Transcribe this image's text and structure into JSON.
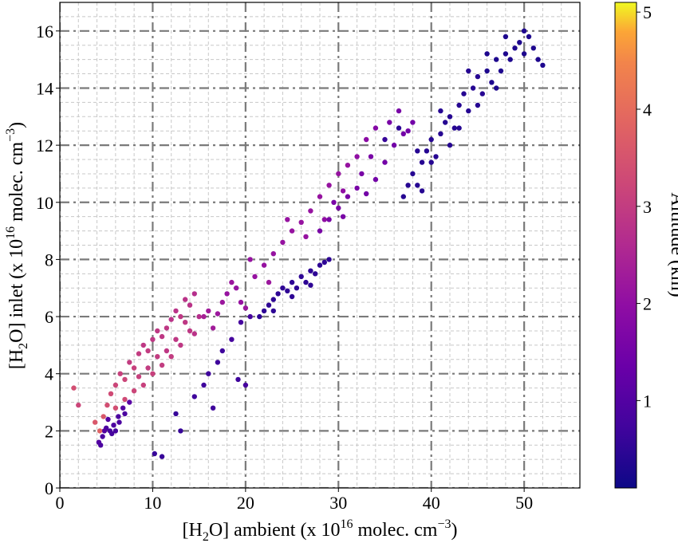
{
  "chart_data": {
    "type": "scatter",
    "title": "",
    "xlabel": {
      "prefix": "[H",
      "sub": "2",
      "mid": "O] ambient (x 10",
      "sup": "16",
      "suffix": " molec. cm",
      "sup2": "−3",
      "end": ")"
    },
    "ylabel": {
      "prefix": "[H",
      "sub": "2",
      "mid": "O] inlet (x 10",
      "sup": "16",
      "suffix": " molec. cm",
      "sup2": "−3",
      "end": ")"
    },
    "xlim": [
      0,
      56
    ],
    "ylim": [
      0,
      17
    ],
    "xticks": [
      0,
      10,
      20,
      30,
      40,
      50
    ],
    "yticks": [
      0,
      2,
      4,
      6,
      8,
      10,
      12,
      14,
      16
    ],
    "grid": {
      "major": true,
      "minor": true,
      "major_style": "dash-dot",
      "minor_style": "dashed"
    },
    "colorbar": {
      "label": "Altitude (km)",
      "colormap": "plasma",
      "range": [
        0.1,
        5.1
      ],
      "ticks": [
        1,
        2,
        3,
        4,
        5
      ]
    },
    "series": [
      {
        "points": [
          [
            4.2,
            1.6,
            1.0
          ],
          [
            4.6,
            1.8,
            0.9
          ],
          [
            5.0,
            2.1,
            0.9
          ],
          [
            5.4,
            2.0,
            0.8
          ],
          [
            5.8,
            2.2,
            0.9
          ],
          [
            6.3,
            2.5,
            0.9
          ],
          [
            5.2,
            2.4,
            1.0
          ],
          [
            4.8,
            2.0,
            1.0
          ],
          [
            6.0,
            2.0,
            0.8
          ],
          [
            6.8,
            2.8,
            1.0
          ],
          [
            7.5,
            3.0,
            1.1
          ],
          [
            7.0,
            2.6,
            0.9
          ],
          [
            5.6,
            1.9,
            0.8
          ],
          [
            6.4,
            2.3,
            0.9
          ],
          [
            4.4,
            1.5,
            0.9
          ]
        ]
      },
      {
        "points": [
          [
            1.5,
            3.5,
            3.4
          ],
          [
            2.0,
            2.9,
            3.2
          ],
          [
            3.8,
            2.3,
            3.6
          ],
          [
            4.3,
            2.0,
            3.8
          ],
          [
            4.7,
            2.5,
            3.6
          ],
          [
            5.1,
            2.9,
            3.4
          ],
          [
            5.5,
            3.3,
            3.3
          ],
          [
            6.0,
            3.6,
            3.2
          ],
          [
            6.5,
            4.0,
            3.1
          ],
          [
            7.0,
            3.8,
            3.2
          ],
          [
            7.5,
            4.4,
            3.0
          ],
          [
            8.0,
            4.2,
            3.1
          ],
          [
            8.5,
            4.7,
            3.0
          ],
          [
            9.0,
            5.0,
            2.9
          ],
          [
            9.5,
            4.8,
            3.0
          ],
          [
            10.0,
            5.2,
            2.9
          ],
          [
            10.5,
            5.5,
            2.9
          ],
          [
            11.0,
            5.3,
            2.9
          ],
          [
            11.5,
            5.6,
            2.9
          ],
          [
            12.0,
            5.9,
            2.8
          ],
          [
            12.5,
            6.2,
            2.8
          ],
          [
            13.0,
            6.0,
            2.9
          ],
          [
            13.5,
            5.8,
            2.9
          ],
          [
            14.0,
            6.4,
            2.8
          ],
          [
            14.5,
            6.8,
            2.7
          ],
          [
            14.0,
            5.5,
            2.9
          ],
          [
            15.0,
            6.0,
            2.7
          ],
          [
            13.0,
            5.0,
            2.9
          ],
          [
            12.0,
            4.6,
            3.0
          ],
          [
            11.0,
            4.3,
            3.0
          ],
          [
            10.0,
            4.0,
            3.1
          ],
          [
            9.0,
            3.6,
            3.1
          ],
          [
            8.0,
            3.4,
            3.2
          ],
          [
            7.0,
            3.1,
            3.3
          ],
          [
            6.0,
            2.8,
            3.4
          ],
          [
            11.5,
            4.8,
            2.9
          ],
          [
            12.5,
            5.2,
            2.9
          ],
          [
            13.5,
            6.6,
            2.8
          ],
          [
            14.5,
            5.4,
            2.8
          ],
          [
            10.5,
            4.6,
            3.0
          ],
          [
            9.5,
            4.2,
            3.0
          ],
          [
            8.5,
            3.9,
            3.1
          ]
        ]
      },
      {
        "points": [
          [
            15.5,
            6.0,
            2.4
          ],
          [
            16.0,
            6.2,
            2.3
          ],
          [
            16.5,
            5.6,
            2.3
          ],
          [
            17.0,
            6.1,
            2.2
          ],
          [
            17.5,
            6.5,
            2.2
          ],
          [
            18.0,
            6.8,
            2.1
          ],
          [
            19.0,
            7.0,
            2.1
          ],
          [
            20.0,
            6.3,
            2.2
          ],
          [
            21.0,
            7.4,
            2.1
          ],
          [
            22.0,
            7.8,
            2.1
          ],
          [
            23.0,
            8.2,
            2.1
          ],
          [
            24.0,
            8.6,
            2.1
          ],
          [
            25.0,
            9.0,
            2.1
          ],
          [
            26.0,
            9.3,
            2.1
          ],
          [
            27.0,
            9.7,
            2.1
          ],
          [
            28.0,
            10.2,
            2.1
          ],
          [
            29.0,
            10.6,
            2.1
          ],
          [
            30.0,
            11.0,
            2.1
          ],
          [
            31.0,
            11.3,
            2.1
          ],
          [
            32.0,
            11.6,
            2.0
          ],
          [
            18.5,
            7.2,
            2.2
          ],
          [
            22.5,
            7.2,
            2.2
          ],
          [
            26.5,
            8.8,
            2.1
          ],
          [
            24.5,
            9.4,
            2.1
          ],
          [
            28.5,
            9.4,
            2.0
          ],
          [
            30.5,
            10.4,
            2.0
          ],
          [
            20.5,
            8.0,
            2.1
          ],
          [
            19.5,
            6.5,
            2.1
          ],
          [
            33.0,
            12.2,
            1.9
          ],
          [
            34.0,
            12.6,
            1.8
          ]
        ]
      },
      {
        "points": [
          [
            28.0,
            9.0,
            1.6
          ],
          [
            29.0,
            9.4,
            1.6
          ],
          [
            30.0,
            9.8,
            1.6
          ],
          [
            31.0,
            10.2,
            1.6
          ],
          [
            32.0,
            10.5,
            1.6
          ],
          [
            33.0,
            10.3,
            1.5
          ],
          [
            34.0,
            10.8,
            1.5
          ],
          [
            35.0,
            11.4,
            1.5
          ],
          [
            36.0,
            12.0,
            1.5
          ],
          [
            37.0,
            12.4,
            1.5
          ],
          [
            38.0,
            12.8,
            1.5
          ],
          [
            35.5,
            12.8,
            1.6
          ],
          [
            36.5,
            13.2,
            1.6
          ],
          [
            37.5,
            12.5,
            1.5
          ],
          [
            33.5,
            11.6,
            1.6
          ],
          [
            32.5,
            11.0,
            1.6
          ],
          [
            30.5,
            9.5,
            1.6
          ],
          [
            29.5,
            10.0,
            1.6
          ]
        ]
      },
      {
        "points": [
          [
            21.5,
            6.0,
            0.5
          ],
          [
            22.0,
            6.2,
            0.5
          ],
          [
            22.5,
            6.4,
            0.5
          ],
          [
            23.0,
            6.6,
            0.5
          ],
          [
            23.5,
            6.8,
            0.5
          ],
          [
            24.0,
            7.0,
            0.5
          ],
          [
            24.5,
            6.9,
            0.5
          ],
          [
            25.0,
            7.2,
            0.5
          ],
          [
            25.5,
            7.0,
            0.5
          ],
          [
            26.0,
            7.4,
            0.5
          ],
          [
            26.5,
            7.2,
            0.5
          ],
          [
            27.0,
            7.6,
            0.5
          ],
          [
            27.5,
            7.5,
            0.5
          ],
          [
            28.0,
            7.8,
            0.5
          ],
          [
            28.5,
            7.9,
            0.5
          ],
          [
            29.0,
            8.0,
            0.5
          ],
          [
            23.0,
            6.2,
            0.5
          ],
          [
            25.0,
            6.7,
            0.5
          ],
          [
            27.0,
            7.1,
            0.5
          ]
        ]
      },
      {
        "points": [
          [
            37.0,
            10.2,
            0.4
          ],
          [
            37.5,
            10.6,
            0.4
          ],
          [
            38.0,
            11.0,
            0.4
          ],
          [
            38.5,
            10.6,
            0.4
          ],
          [
            39.0,
            11.4,
            0.4
          ],
          [
            39.5,
            11.8,
            0.4
          ],
          [
            40.0,
            12.2,
            0.4
          ],
          [
            40.5,
            11.6,
            0.4
          ],
          [
            41.0,
            12.4,
            0.4
          ],
          [
            41.5,
            12.8,
            0.4
          ],
          [
            42.0,
            13.0,
            0.4
          ],
          [
            42.5,
            12.6,
            0.4
          ],
          [
            43.0,
            13.4,
            0.4
          ],
          [
            43.5,
            13.8,
            0.4
          ],
          [
            44.0,
            13.2,
            0.4
          ],
          [
            44.5,
            14.0,
            0.4
          ],
          [
            45.0,
            14.4,
            0.4
          ],
          [
            45.5,
            13.8,
            0.4
          ],
          [
            46.0,
            14.6,
            0.3
          ],
          [
            46.5,
            14.2,
            0.3
          ],
          [
            47.0,
            15.0,
            0.3
          ],
          [
            47.5,
            14.6,
            0.3
          ],
          [
            48.0,
            15.2,
            0.3
          ],
          [
            48.5,
            15.0,
            0.3
          ],
          [
            49.0,
            15.4,
            0.3
          ],
          [
            49.5,
            15.6,
            0.3
          ],
          [
            50.0,
            15.2,
            0.3
          ],
          [
            50.5,
            15.8,
            0.3
          ],
          [
            51.0,
            15.4,
            0.3
          ],
          [
            51.5,
            15.0,
            0.3
          ],
          [
            52.0,
            14.8,
            0.3
          ],
          [
            44.0,
            14.6,
            0.4
          ],
          [
            46.0,
            15.2,
            0.3
          ],
          [
            48.0,
            15.8,
            0.3
          ],
          [
            42.0,
            12.0,
            0.4
          ],
          [
            40.0,
            11.4,
            0.4
          ],
          [
            38.5,
            11.8,
            0.4
          ],
          [
            39.0,
            10.4,
            0.4
          ],
          [
            43.0,
            12.6,
            0.4
          ],
          [
            45.0,
            13.4,
            0.4
          ],
          [
            47.0,
            14.0,
            0.3
          ],
          [
            50.0,
            16.0,
            0.3
          ],
          [
            41.0,
            13.2,
            0.4
          ],
          [
            36.5,
            12.6,
            0.5
          ],
          [
            35.0,
            12.2,
            0.6
          ]
        ]
      },
      {
        "points": [
          [
            10.2,
            1.2,
            0.6
          ],
          [
            11.0,
            1.1,
            0.6
          ],
          [
            13.0,
            2.0,
            0.6
          ],
          [
            12.5,
            2.6,
            0.6
          ],
          [
            16.0,
            4.0,
            0.7
          ],
          [
            17.5,
            4.8,
            0.7
          ],
          [
            18.5,
            5.2,
            0.8
          ],
          [
            19.2,
            3.8,
            0.7
          ],
          [
            20.0,
            3.6,
            0.8
          ],
          [
            16.5,
            2.8,
            0.7
          ],
          [
            14.5,
            3.2,
            0.7
          ],
          [
            15.5,
            3.6,
            0.7
          ],
          [
            17.0,
            4.4,
            0.7
          ],
          [
            19.5,
            5.8,
            0.8
          ],
          [
            20.5,
            6.0,
            0.8
          ]
        ]
      }
    ]
  }
}
